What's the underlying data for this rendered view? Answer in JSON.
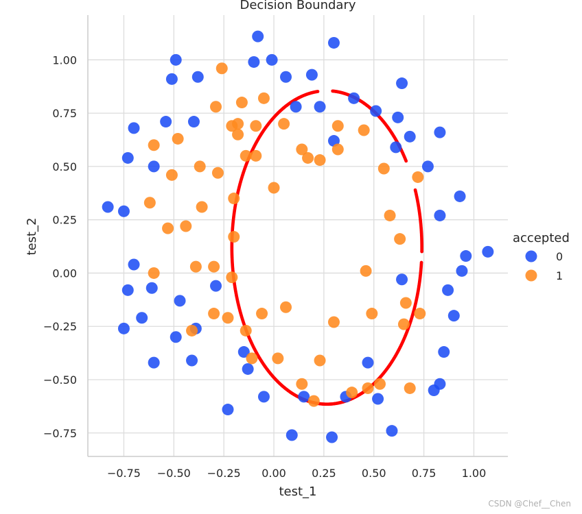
{
  "chart_data": {
    "type": "scatter",
    "title": "Decision Boundary",
    "xlabel": "test_1",
    "ylabel": "test_2",
    "xlim": [
      -0.93,
      1.17
    ],
    "ylim": [
      -0.86,
      1.21
    ],
    "xticks": [
      "−0.75",
      "−0.50",
      "−0.25",
      "0.00",
      "0.25",
      "0.50",
      "0.75",
      "1.00"
    ],
    "xtick_values": [
      -0.75,
      -0.5,
      -0.25,
      0,
      0.25,
      0.5,
      0.75,
      1.0
    ],
    "yticks": [
      "−0.75",
      "−0.50",
      "−0.25",
      "0.00",
      "0.25",
      "0.50",
      "0.75",
      "1.00"
    ],
    "ytick_values": [
      -0.75,
      -0.5,
      -0.25,
      0,
      0.25,
      0.5,
      0.75,
      1.0
    ],
    "grid": true,
    "legend": {
      "title": "accepted",
      "placement": "right",
      "entries": [
        {
          "label": "0",
          "color": "#1f4ff5"
        },
        {
          "label": "1",
          "color": "#ff8a1f"
        }
      ]
    },
    "series": [
      {
        "key": "0",
        "color": "#1f4ff5",
        "points": [
          [
            -0.83,
            0.31
          ],
          [
            -0.75,
            0.29
          ],
          [
            -0.73,
            0.54
          ],
          [
            -0.7,
            0.68
          ],
          [
            -0.7,
            0.04
          ],
          [
            -0.73,
            -0.08
          ],
          [
            -0.75,
            -0.26
          ],
          [
            -0.66,
            -0.21
          ],
          [
            -0.61,
            -0.07
          ],
          [
            -0.6,
            -0.42
          ],
          [
            -0.54,
            0.71
          ],
          [
            -0.6,
            0.5
          ],
          [
            -0.51,
            0.91
          ],
          [
            -0.49,
            1.0
          ],
          [
            -0.38,
            0.92
          ],
          [
            -0.4,
            0.71
          ],
          [
            -0.47,
            -0.13
          ],
          [
            -0.49,
            -0.3
          ],
          [
            -0.39,
            -0.26
          ],
          [
            -0.41,
            -0.41
          ],
          [
            -0.29,
            -0.06
          ],
          [
            -0.23,
            -0.64
          ],
          [
            -0.15,
            -0.37
          ],
          [
            -0.13,
            -0.45
          ],
          [
            -0.05,
            -0.58
          ],
          [
            -0.1,
            0.99
          ],
          [
            -0.08,
            1.11
          ],
          [
            -0.01,
            1.0
          ],
          [
            0.06,
            0.92
          ],
          [
            0.11,
            0.78
          ],
          [
            0.19,
            0.93
          ],
          [
            0.23,
            0.78
          ],
          [
            0.3,
            1.08
          ],
          [
            0.3,
            0.62
          ],
          [
            0.4,
            0.82
          ],
          [
            0.51,
            0.76
          ],
          [
            0.61,
            0.59
          ],
          [
            0.62,
            0.73
          ],
          [
            0.64,
            0.89
          ],
          [
            0.68,
            0.64
          ],
          [
            0.77,
            0.5
          ],
          [
            0.83,
            0.66
          ],
          [
            0.83,
            0.27
          ],
          [
            0.93,
            0.36
          ],
          [
            0.96,
            0.08
          ],
          [
            0.94,
            0.01
          ],
          [
            1.07,
            0.1
          ],
          [
            0.87,
            -0.08
          ],
          [
            0.9,
            -0.2
          ],
          [
            0.85,
            -0.37
          ],
          [
            0.83,
            -0.52
          ],
          [
            0.8,
            -0.55
          ],
          [
            0.64,
            -0.03
          ],
          [
            0.59,
            -0.74
          ],
          [
            0.52,
            -0.59
          ],
          [
            0.47,
            -0.42
          ],
          [
            0.36,
            -0.58
          ],
          [
            0.29,
            -0.77
          ],
          [
            0.15,
            -0.58
          ],
          [
            0.09,
            -0.76
          ]
        ]
      },
      {
        "key": "1",
        "color": "#ff8a1f",
        "points": [
          [
            -0.26,
            0.96
          ],
          [
            -0.29,
            0.78
          ],
          [
            -0.16,
            0.8
          ],
          [
            -0.05,
            0.82
          ],
          [
            -0.21,
            0.69
          ],
          [
            -0.18,
            0.7
          ],
          [
            -0.18,
            0.65
          ],
          [
            -0.09,
            0.69
          ],
          [
            0.05,
            0.7
          ],
          [
            -0.14,
            0.55
          ],
          [
            -0.09,
            0.55
          ],
          [
            -0.6,
            0.6
          ],
          [
            -0.48,
            0.63
          ],
          [
            -0.37,
            0.5
          ],
          [
            -0.51,
            0.46
          ],
          [
            -0.28,
            0.47
          ],
          [
            -0.62,
            0.33
          ],
          [
            -0.36,
            0.31
          ],
          [
            -0.2,
            0.35
          ],
          [
            -0.53,
            0.21
          ],
          [
            -0.44,
            0.22
          ],
          [
            -0.2,
            0.17
          ],
          [
            -0.6,
            0.0
          ],
          [
            -0.39,
            0.03
          ],
          [
            -0.3,
            0.03
          ],
          [
            -0.21,
            -0.02
          ],
          [
            -0.3,
            -0.19
          ],
          [
            -0.23,
            -0.21
          ],
          [
            -0.41,
            -0.27
          ],
          [
            -0.14,
            -0.27
          ],
          [
            -0.11,
            -0.4
          ],
          [
            -0.06,
            -0.19
          ],
          [
            0.0,
            0.4
          ],
          [
            0.06,
            -0.16
          ],
          [
            0.02,
            -0.4
          ],
          [
            0.14,
            0.58
          ],
          [
            0.17,
            0.54
          ],
          [
            0.23,
            0.53
          ],
          [
            0.32,
            0.69
          ],
          [
            0.32,
            0.58
          ],
          [
            0.45,
            0.67
          ],
          [
            0.55,
            0.49
          ],
          [
            0.58,
            0.27
          ],
          [
            0.63,
            0.16
          ],
          [
            0.72,
            0.45
          ],
          [
            0.46,
            0.01
          ],
          [
            0.66,
            -0.14
          ],
          [
            0.73,
            -0.19
          ],
          [
            0.65,
            -0.24
          ],
          [
            0.49,
            -0.19
          ],
          [
            0.3,
            -0.23
          ],
          [
            0.23,
            -0.41
          ],
          [
            0.14,
            -0.52
          ],
          [
            0.2,
            -0.6
          ],
          [
            0.39,
            -0.56
          ],
          [
            0.47,
            -0.54
          ],
          [
            0.53,
            -0.52
          ],
          [
            0.68,
            -0.54
          ]
        ]
      }
    ],
    "boundary": {
      "color": "#ff0000",
      "center": [
        0.265,
        0.12
      ],
      "rx": 0.475,
      "ry": 0.735,
      "gaps_deg": [
        [
          87,
          95
        ],
        [
          22,
          33
        ],
        [
          -5,
          -2
        ]
      ]
    }
  },
  "watermark": "CSDN @Chef__Chen"
}
